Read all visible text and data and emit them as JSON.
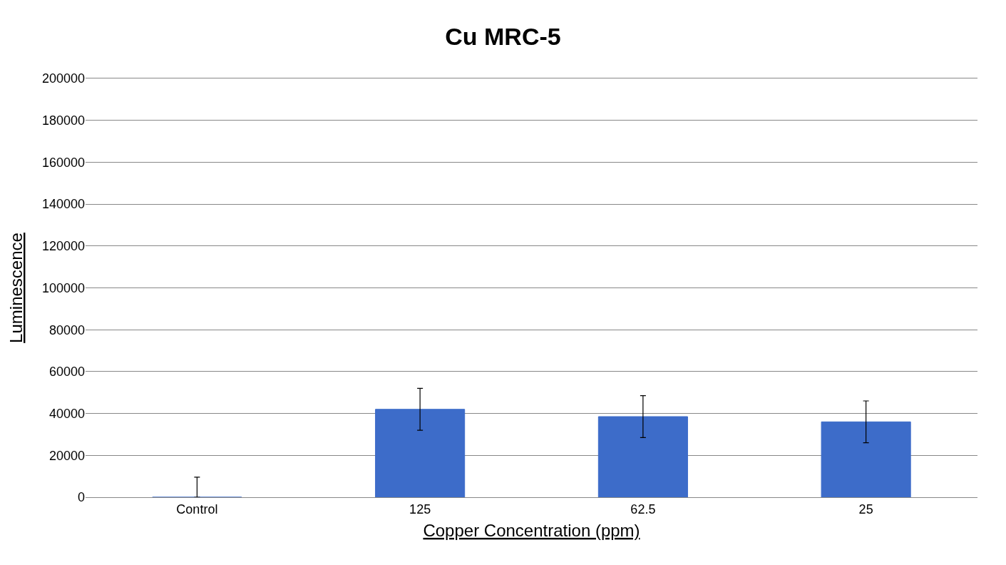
{
  "chart_data": {
    "type": "bar",
    "title": "Cu MRC-5",
    "xlabel": "Copper Concentration (ppm)",
    "ylabel": "Luminescence",
    "categories": [
      "Control",
      "125",
      "62.5",
      "25"
    ],
    "values": [
      0,
      42000,
      38500,
      36000
    ],
    "errors": [
      [
        0,
        9600
      ],
      [
        32000,
        52000
      ],
      [
        28500,
        48500
      ],
      [
        26000,
        46000
      ]
    ],
    "color": "#3d6cc9",
    "ylim": [
      0,
      200000
    ],
    "yticks": [
      0,
      20000,
      40000,
      60000,
      80000,
      100000,
      120000,
      140000,
      160000,
      180000,
      200000
    ],
    "grid": "y"
  }
}
